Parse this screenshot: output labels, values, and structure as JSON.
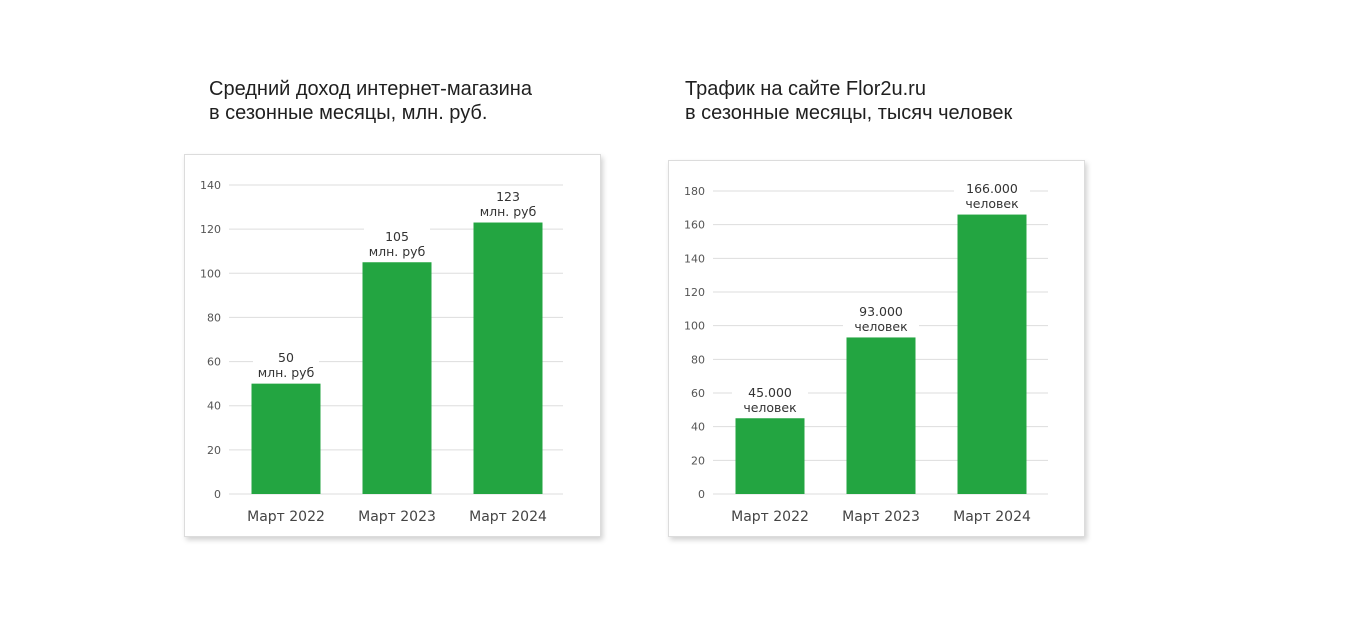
{
  "colors": {
    "bar": "#23a541",
    "grid": "#dddddd",
    "label_bg": "#ffffff"
  },
  "chart_data": [
    {
      "type": "bar",
      "title_lines": [
        "Средний доход интернет-магазина",
        "в сезонные месяцы, млн. руб."
      ],
      "categories": [
        "Март 2022",
        "Март 2023",
        "Март 2024"
      ],
      "values": [
        50,
        105,
        123
      ],
      "data_labels": [
        [
          "50",
          "млн. руб"
        ],
        [
          "105",
          "млн. руб"
        ],
        [
          "123",
          "млн. руб"
        ]
      ],
      "yticks": [
        "0",
        "20",
        "40",
        "60",
        "80",
        "100",
        "120",
        "140"
      ],
      "ylim": [
        0,
        140
      ],
      "grid": true,
      "legend": "none"
    },
    {
      "type": "bar",
      "title_lines": [
        "Трафик на сайте Flor2u.ru",
        "в сезонные месяцы, тысяч человек"
      ],
      "categories": [
        "Март 2022",
        "Март 2023",
        "Март 2024"
      ],
      "values": [
        45,
        93,
        166
      ],
      "data_labels": [
        [
          "45.000",
          "человек"
        ],
        [
          "93.000",
          "человек"
        ],
        [
          "166.000",
          "человек"
        ]
      ],
      "yticks": [
        "0",
        "20",
        "40",
        "60",
        "80",
        "100",
        "120",
        "140",
        "160",
        "180"
      ],
      "ylim": [
        0,
        180
      ],
      "grid": true,
      "legend": "none"
    }
  ]
}
